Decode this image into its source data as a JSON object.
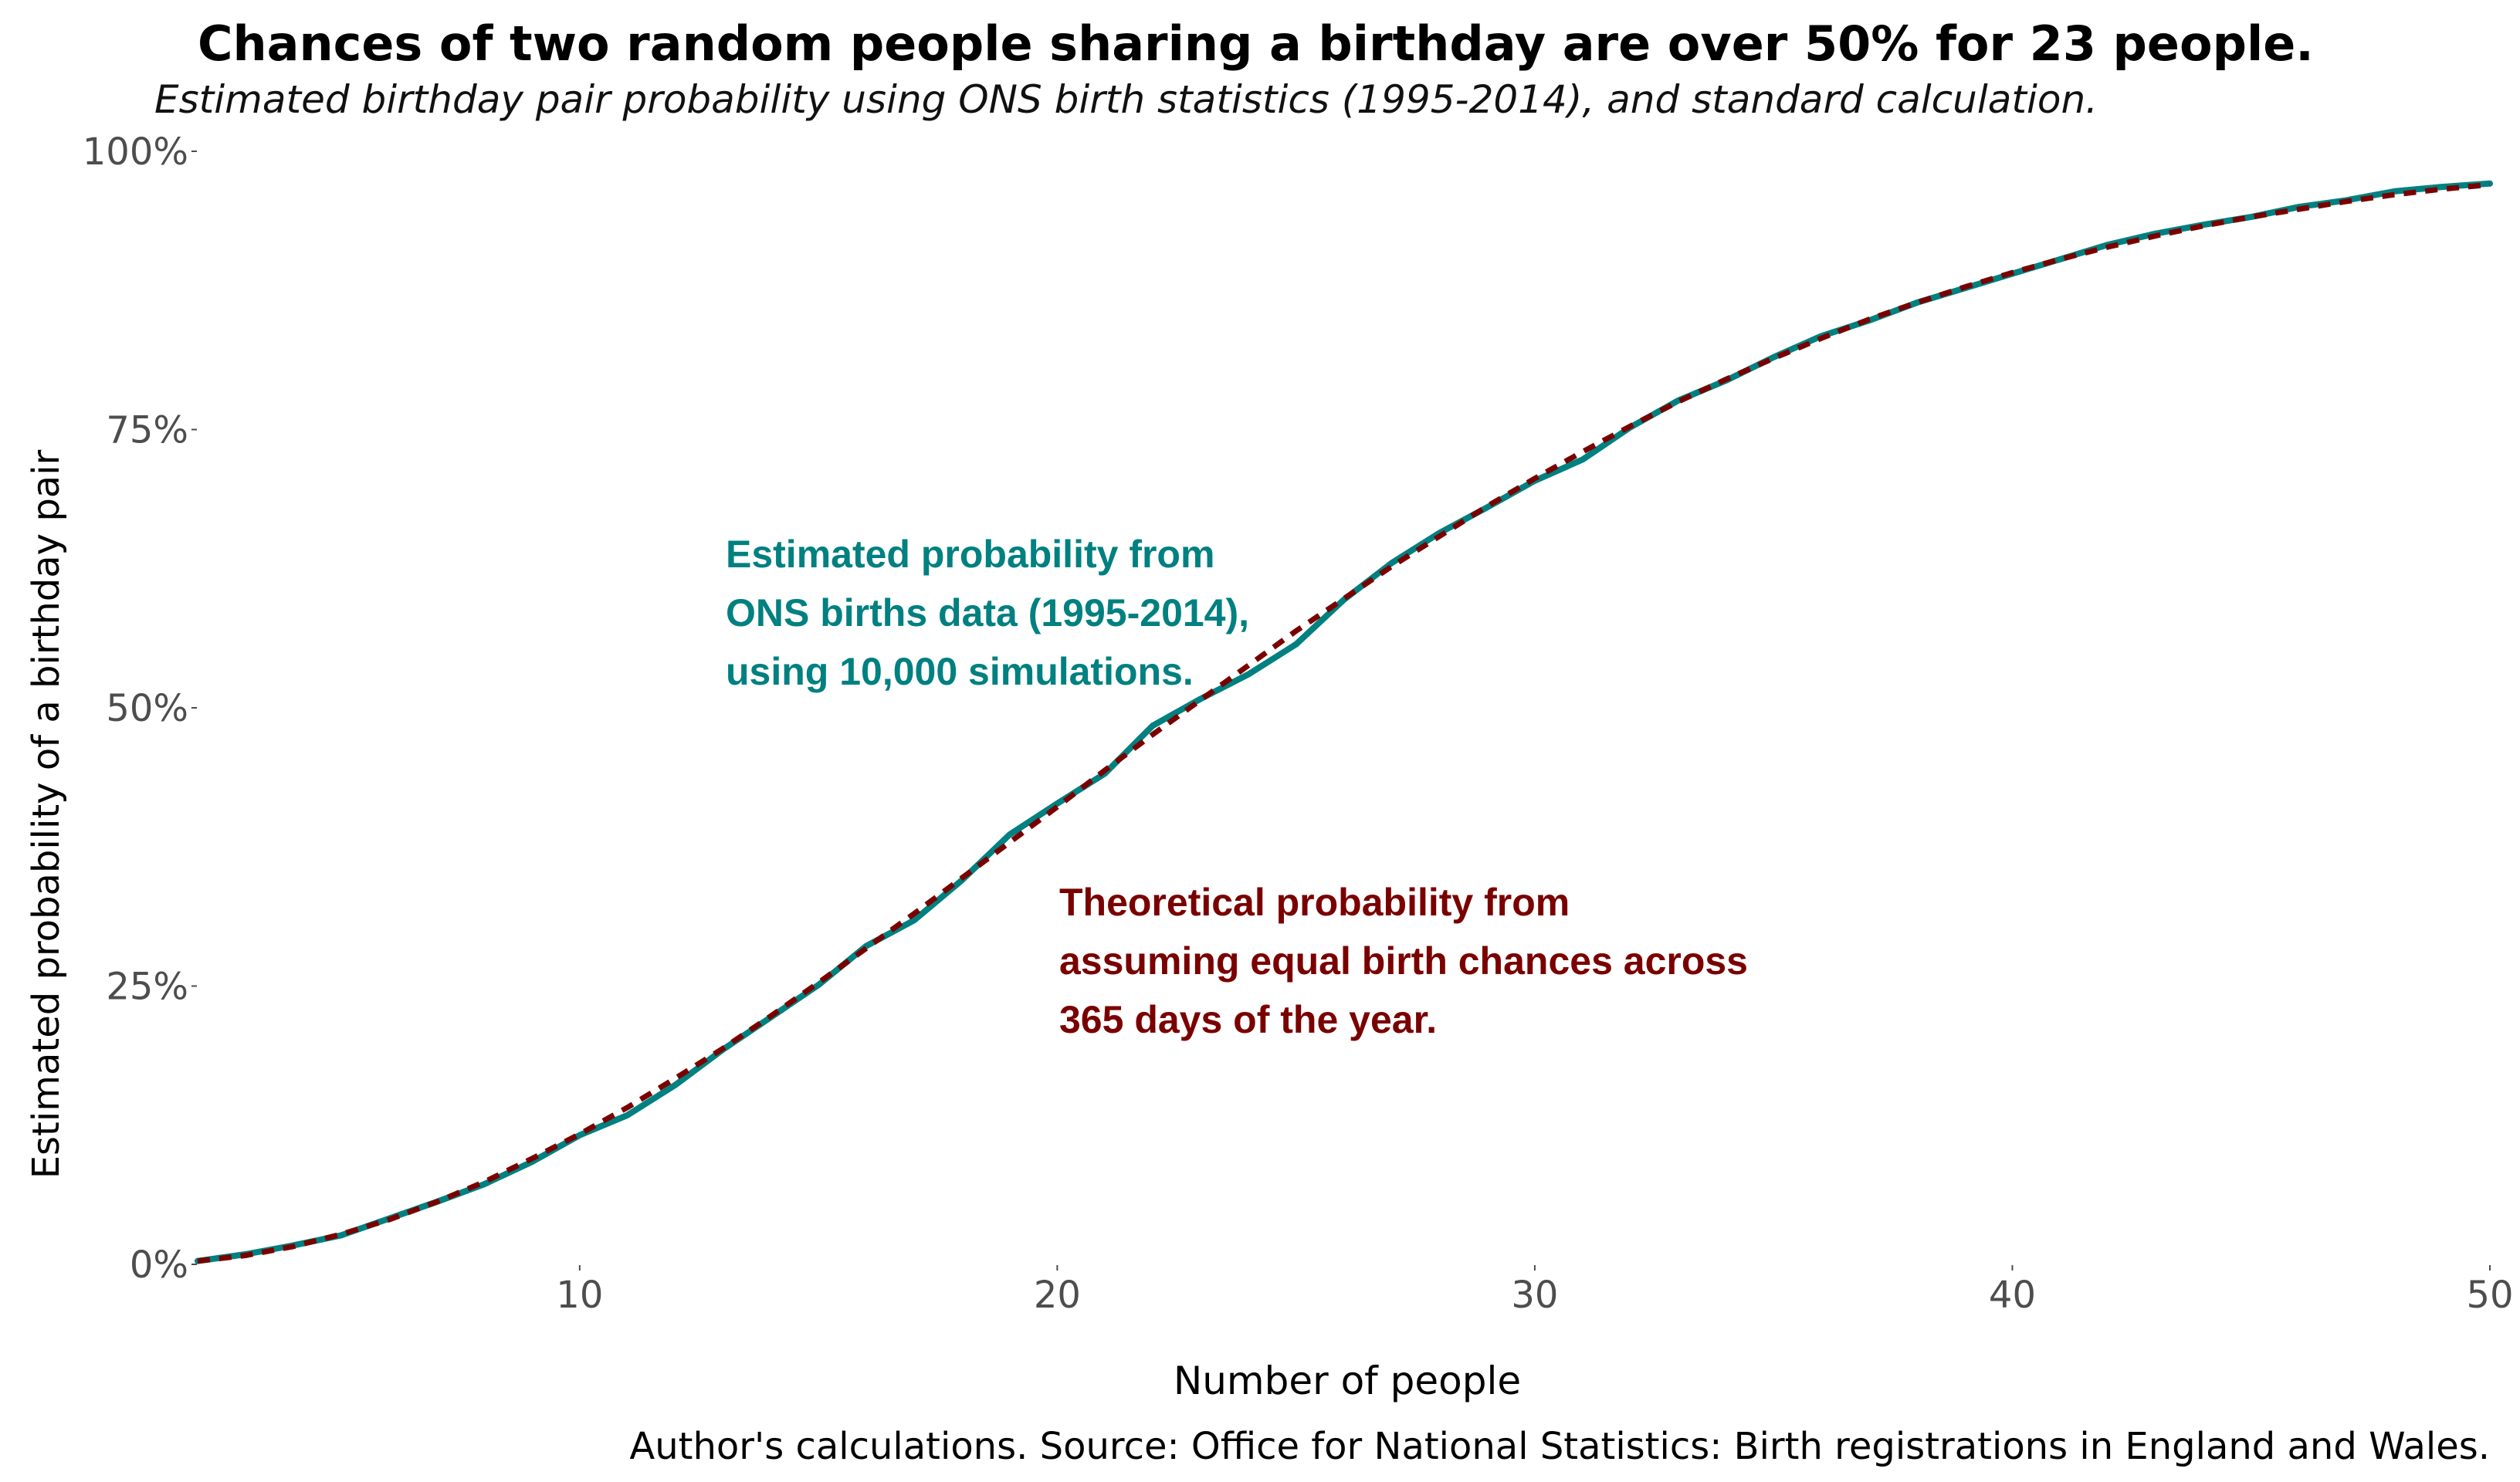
{
  "chart_data": {
    "type": "line",
    "title": "Chances of two random people sharing a birthday are over 50% for 23 people.",
    "subtitle": "Estimated birthday pair probability using ONS birth statistics (1995-2014), and standard calculation.",
    "xlabel": "Number of people",
    "ylabel": "Estimated probability of a birthday pair",
    "caption": "Author's calculations. Source: Office for National Statistics: Birth registrations in England and Wales.",
    "xlim": [
      2,
      50
    ],
    "ylim": [
      0,
      1
    ],
    "x_ticks": [
      10,
      20,
      30,
      40,
      50
    ],
    "x_tick_labels": [
      "10",
      "20",
      "30",
      "40",
      "50"
    ],
    "y_ticks": [
      0,
      0.25,
      0.5,
      0.75,
      1.0
    ],
    "y_tick_labels": [
      "0%",
      "25%",
      "50%",
      "75%",
      "100%"
    ],
    "grid": false,
    "legend": "none",
    "x": [
      2,
      3,
      4,
      5,
      6,
      7,
      8,
      9,
      10,
      11,
      12,
      13,
      14,
      15,
      16,
      17,
      18,
      19,
      20,
      21,
      22,
      23,
      24,
      25,
      26,
      27,
      28,
      29,
      30,
      31,
      32,
      33,
      34,
      35,
      36,
      37,
      38,
      39,
      40,
      41,
      42,
      43,
      44,
      45,
      46,
      47,
      48,
      49,
      50
    ],
    "series": [
      {
        "color": "#008080",
        "style": "solid",
        "values": [
          0.003,
          0.009,
          0.017,
          0.026,
          0.041,
          0.056,
          0.072,
          0.092,
          0.116,
          0.134,
          0.161,
          0.193,
          0.222,
          0.251,
          0.286,
          0.309,
          0.345,
          0.386,
          0.414,
          0.441,
          0.484,
          0.508,
          0.53,
          0.557,
          0.597,
          0.63,
          0.657,
          0.68,
          0.704,
          0.723,
          0.752,
          0.776,
          0.794,
          0.815,
          0.834,
          0.848,
          0.864,
          0.877,
          0.89,
          0.903,
          0.916,
          0.926,
          0.934,
          0.941,
          0.95,
          0.956,
          0.964,
          0.968,
          0.971
        ]
      },
      {
        "color": "#7a0000",
        "style": "dashed",
        "values": [
          0.003,
          0.008,
          0.016,
          0.027,
          0.04,
          0.056,
          0.074,
          0.095,
          0.117,
          0.141,
          0.167,
          0.194,
          0.223,
          0.253,
          0.284,
          0.315,
          0.347,
          0.379,
          0.411,
          0.444,
          0.476,
          0.507,
          0.538,
          0.569,
          0.598,
          0.627,
          0.654,
          0.681,
          0.706,
          0.73,
          0.753,
          0.775,
          0.795,
          0.814,
          0.832,
          0.849,
          0.864,
          0.878,
          0.891,
          0.903,
          0.914,
          0.924,
          0.933,
          0.941,
          0.948,
          0.955,
          0.961,
          0.966,
          0.97
        ]
      }
    ],
    "annotations": [
      {
        "color": "#008080",
        "lines": [
          "Estimated probability from",
          "ONS births data (1995-2014),",
          "using 10,000 simulations."
        ]
      },
      {
        "color": "#7a0000",
        "lines": [
          "Theoretical probability from",
          "assuming equal birth chances across",
          "365 days of the year."
        ]
      }
    ]
  }
}
